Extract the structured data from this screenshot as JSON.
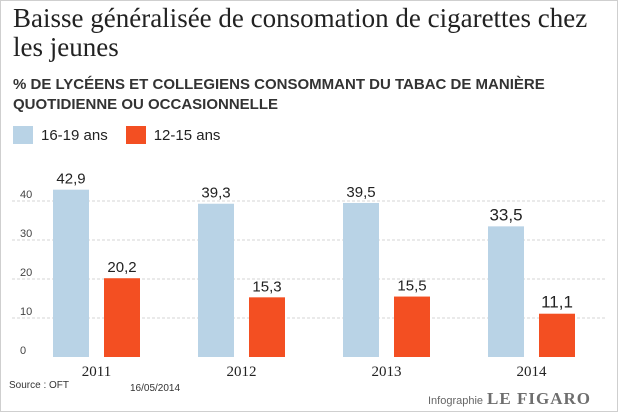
{
  "colors": {
    "series_a": "#b9d3e6",
    "series_b": "#f34f22",
    "grid": "#d6d6d6",
    "tick_text": "#444444",
    "value_text": "#222222"
  },
  "chart_data": {
    "type": "bar",
    "title": "Baisse généralisée de consomation de cigarettes chez les jeunes",
    "subtitle": "% DE LYCÉENS ET COLLEGIENS CONSOMMANT DU TABAC DE MANIÈRE QUOTIDIENNE OU OCCASIONNELLE",
    "categories": [
      "2011",
      "2012",
      "2013",
      "2014"
    ],
    "series": [
      {
        "name": "16-19 ans",
        "values": [
          42.9,
          39.3,
          39.5,
          33.5
        ],
        "labels": [
          "42,9",
          "39,3",
          "39,5",
          "33,5"
        ]
      },
      {
        "name": "12-15 ans",
        "values": [
          20.2,
          15.3,
          15.5,
          11.1
        ],
        "labels": [
          "20,2",
          "15,3",
          "15,5",
          "11,1"
        ]
      }
    ],
    "yticks": [
      "0",
      "10",
      "20",
      "30",
      "40"
    ],
    "ylim": [
      0,
      45
    ],
    "grid": true,
    "legend_position": "top-left"
  },
  "footer": {
    "source": "Source : OFT",
    "date": "16/05/2014",
    "credit_label": "Infographie",
    "credit_brand": "LE FIGARO"
  }
}
